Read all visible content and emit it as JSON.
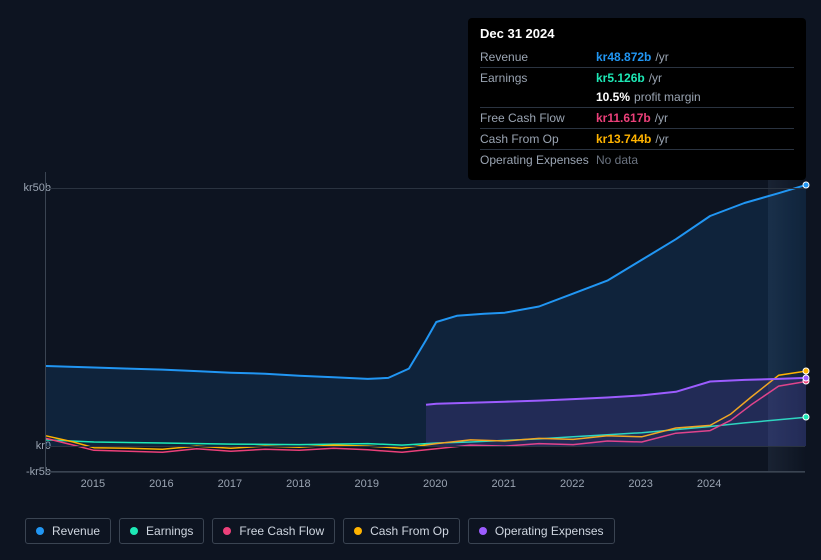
{
  "chart": {
    "type": "line",
    "background_color": "#0d1421",
    "grid_color": "#2a3340",
    "axis_color": "#3a4452",
    "text_color": "#9aa4b2",
    "font_size_axis": 11,
    "x": {
      "min": 2014.3,
      "max": 2025.4,
      "ticks": [
        2015,
        2016,
        2017,
        2018,
        2019,
        2020,
        2021,
        2022,
        2023,
        2024
      ]
    },
    "y": {
      "min": -5,
      "max": 53,
      "ticks": [
        {
          "v": 50,
          "label": "kr50b"
        },
        {
          "v": 0,
          "label": "kr0"
        },
        {
          "v": -5,
          "label": "-kr5b"
        }
      ]
    },
    "forecast_start_x": 2024.85,
    "series": [
      {
        "key": "revenue",
        "label": "Revenue",
        "color": "#2196f3",
        "line_width": 2,
        "fill_opacity": 0.12,
        "points": [
          [
            2014.3,
            15.5
          ],
          [
            2015,
            15.2
          ],
          [
            2015.5,
            15.0
          ],
          [
            2016,
            14.8
          ],
          [
            2016.5,
            14.5
          ],
          [
            2017,
            14.2
          ],
          [
            2017.5,
            14.0
          ],
          [
            2018,
            13.6
          ],
          [
            2018.5,
            13.3
          ],
          [
            2019,
            13.0
          ],
          [
            2019.3,
            13.2
          ],
          [
            2019.6,
            15.0
          ],
          [
            2019.85,
            20.5
          ],
          [
            2020,
            24.0
          ],
          [
            2020.3,
            25.2
          ],
          [
            2020.7,
            25.6
          ],
          [
            2021,
            25.8
          ],
          [
            2021.5,
            27.0
          ],
          [
            2022,
            29.5
          ],
          [
            2022.5,
            32.0
          ],
          [
            2023,
            36.0
          ],
          [
            2023.5,
            40.0
          ],
          [
            2024,
            44.5
          ],
          [
            2024.5,
            47.0
          ],
          [
            2025,
            48.9
          ],
          [
            2025.4,
            50.5
          ]
        ]
      },
      {
        "key": "earnings",
        "label": "Earnings",
        "color": "#1de9b6",
        "line_width": 1.5,
        "fill_opacity": 0,
        "points": [
          [
            2014.3,
            1.2
          ],
          [
            2015,
            0.8
          ],
          [
            2016,
            0.6
          ],
          [
            2017,
            0.4
          ],
          [
            2018,
            0.3
          ],
          [
            2019,
            0.5
          ],
          [
            2019.5,
            0.2
          ],
          [
            2020,
            0.6
          ],
          [
            2020.5,
            0.8
          ],
          [
            2021,
            1.1
          ],
          [
            2021.5,
            1.4
          ],
          [
            2022,
            1.8
          ],
          [
            2022.5,
            2.2
          ],
          [
            2023,
            2.6
          ],
          [
            2023.5,
            3.2
          ],
          [
            2024,
            3.8
          ],
          [
            2024.5,
            4.5
          ],
          [
            2025,
            5.1
          ],
          [
            2025.4,
            5.6
          ]
        ]
      },
      {
        "key": "fcf",
        "label": "Free Cash Flow",
        "color": "#ec407a",
        "line_width": 1.5,
        "fill_opacity": 0,
        "points": [
          [
            2014.3,
            1.5
          ],
          [
            2014.7,
            0.2
          ],
          [
            2015,
            -0.8
          ],
          [
            2015.5,
            -1.0
          ],
          [
            2016,
            -1.2
          ],
          [
            2016.5,
            -0.5
          ],
          [
            2017,
            -1.0
          ],
          [
            2017.5,
            -0.6
          ],
          [
            2018,
            -0.8
          ],
          [
            2018.5,
            -0.4
          ],
          [
            2019,
            -0.7
          ],
          [
            2019.5,
            -1.2
          ],
          [
            2020,
            -0.5
          ],
          [
            2020.5,
            0.2
          ],
          [
            2021,
            0.0
          ],
          [
            2021.5,
            0.5
          ],
          [
            2022,
            0.3
          ],
          [
            2022.5,
            1.0
          ],
          [
            2023,
            0.8
          ],
          [
            2023.5,
            2.5
          ],
          [
            2024,
            3.0
          ],
          [
            2024.3,
            5.0
          ],
          [
            2024.6,
            8.0
          ],
          [
            2025,
            11.6
          ],
          [
            2025.4,
            12.5
          ]
        ]
      },
      {
        "key": "cfo",
        "label": "Cash From Op",
        "color": "#ffb300",
        "line_width": 1.5,
        "fill_opacity": 0,
        "points": [
          [
            2014.3,
            2.0
          ],
          [
            2014.7,
            0.8
          ],
          [
            2015,
            -0.3
          ],
          [
            2015.5,
            -0.4
          ],
          [
            2016,
            -0.6
          ],
          [
            2016.5,
            0.0
          ],
          [
            2017,
            -0.4
          ],
          [
            2017.5,
            0.0
          ],
          [
            2018,
            -0.2
          ],
          [
            2018.5,
            0.2
          ],
          [
            2019,
            0.0
          ],
          [
            2019.5,
            -0.4
          ],
          [
            2020,
            0.5
          ],
          [
            2020.5,
            1.2
          ],
          [
            2021,
            1.0
          ],
          [
            2021.5,
            1.5
          ],
          [
            2022,
            1.3
          ],
          [
            2022.5,
            2.0
          ],
          [
            2023,
            1.8
          ],
          [
            2023.5,
            3.5
          ],
          [
            2024,
            4.0
          ],
          [
            2024.3,
            6.2
          ],
          [
            2024.6,
            9.5
          ],
          [
            2025,
            13.7
          ],
          [
            2025.4,
            14.5
          ]
        ]
      },
      {
        "key": "opex",
        "label": "Operating Expenses",
        "color": "#9c5cff",
        "line_width": 2,
        "fill_opacity": 0.14,
        "points": [
          [
            2019.85,
            8.0
          ],
          [
            2020,
            8.2
          ],
          [
            2020.5,
            8.4
          ],
          [
            2021,
            8.6
          ],
          [
            2021.5,
            8.8
          ],
          [
            2022,
            9.1
          ],
          [
            2022.5,
            9.4
          ],
          [
            2023,
            9.8
          ],
          [
            2023.5,
            10.5
          ],
          [
            2024,
            12.5
          ],
          [
            2024.5,
            12.8
          ],
          [
            2025,
            13.0
          ],
          [
            2025.4,
            13.2
          ]
        ]
      }
    ]
  },
  "tooltip": {
    "date": "Dec 31 2024",
    "rows": [
      {
        "label": "Revenue",
        "amount": "kr48.872b",
        "unit": "/yr",
        "color": "#2196f3"
      },
      {
        "label": "Earnings",
        "amount": "kr5.126b",
        "unit": "/yr",
        "color": "#1de9b6",
        "sub_pct": "10.5%",
        "sub_text": "profit margin"
      },
      {
        "label": "Free Cash Flow",
        "amount": "kr11.617b",
        "unit": "/yr",
        "color": "#ec407a"
      },
      {
        "label": "Cash From Op",
        "amount": "kr13.744b",
        "unit": "/yr",
        "color": "#ffb300"
      },
      {
        "label": "Operating Expenses",
        "nodata": "No data"
      }
    ]
  },
  "legend": {
    "items": [
      {
        "label": "Revenue",
        "color": "#2196f3"
      },
      {
        "label": "Earnings",
        "color": "#1de9b6"
      },
      {
        "label": "Free Cash Flow",
        "color": "#ec407a"
      },
      {
        "label": "Cash From Op",
        "color": "#ffb300"
      },
      {
        "label": "Operating Expenses",
        "color": "#9c5cff"
      }
    ]
  }
}
